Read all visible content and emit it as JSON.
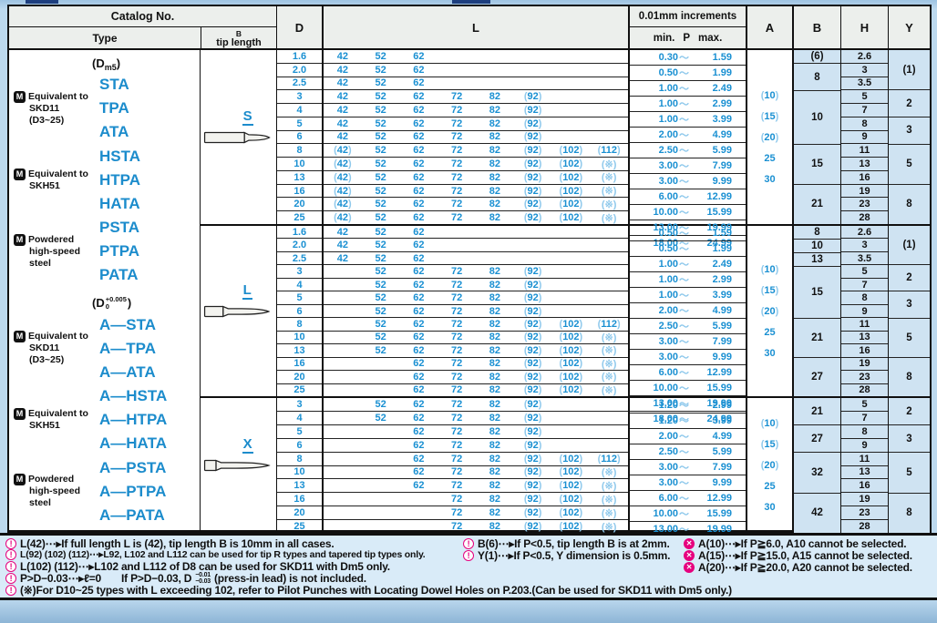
{
  "header": {
    "catalog_no": "Catalog No.",
    "type": "Type",
    "tip_b": "B",
    "tip_length": "tip length",
    "d": "D",
    "l": "L",
    "increments": "0.01mm increments",
    "p_min": "min.",
    "p_label": "P",
    "p_max": "max.",
    "a": "A",
    "b": "B",
    "h": "H",
    "y": "Y"
  },
  "type_column": {
    "sections": [
      {
        "dim_header": {
          "pre": "(D",
          "sub": "m5",
          "post": ")"
        },
        "groups": [
          {
            "label_lines": [
              "Equivalent to",
              "SKD11",
              "(D3~25)"
            ],
            "types": [
              "STA",
              "TPA",
              "ATA"
            ]
          },
          {
            "label_lines": [
              "Equivalent to",
              "SKH51"
            ],
            "types": [
              "HSTA",
              "HTPA",
              "HATA"
            ]
          },
          {
            "label_lines": [
              "Powdered",
              "high-speed",
              "steel"
            ],
            "types": [
              "PSTA",
              "PTPA",
              "PATA"
            ]
          }
        ]
      },
      {
        "dim_header": {
          "pre": "(D",
          "sup": "+0.005",
          "sub": "0",
          "post": ")"
        },
        "groups": [
          {
            "label_lines": [
              "Equivalent to",
              "SKD11",
              "(D3~25)"
            ],
            "types": [
              "A—STA",
              "A—TPA",
              "A—ATA"
            ]
          },
          {
            "label_lines": [
              "Equivalent to",
              "SKH51"
            ],
            "types": [
              "A—HSTA",
              "A—HTPA",
              "A—HATA"
            ]
          },
          {
            "label_lines": [
              "Powdered",
              "high-speed",
              "steel"
            ],
            "types": [
              "A—PSTA",
              "A—PTPA",
              "A—PATA"
            ]
          }
        ]
      }
    ]
  },
  "blocks": [
    {
      "tip_label": "S",
      "rows": [
        {
          "d": "1.6",
          "l": [
            "42",
            "52",
            "62",
            "",
            "",
            "",
            "",
            ""
          ],
          "p": "0.30～1.59"
        },
        {
          "d": "2.0",
          "l": [
            "42",
            "52",
            "62",
            "",
            "",
            "",
            "",
            ""
          ],
          "p": "0.50～1.99"
        },
        {
          "d": "2.5",
          "l": [
            "42",
            "52",
            "62",
            "",
            "",
            "",
            "",
            ""
          ],
          "p": "1.00～2.49"
        },
        {
          "d": "3",
          "l": [
            "42",
            "52",
            "62",
            "72",
            "82",
            "(92)",
            "",
            ""
          ],
          "p": "1.00～2.99"
        },
        {
          "d": "4",
          "l": [
            "42",
            "52",
            "62",
            "72",
            "82",
            "(92)",
            "",
            ""
          ],
          "p": "1.00～3.99"
        },
        {
          "d": "5",
          "l": [
            "42",
            "52",
            "62",
            "72",
            "82",
            "(92)",
            "",
            ""
          ],
          "p": "2.00～4.99"
        },
        {
          "d": "6",
          "l": [
            "42",
            "52",
            "62",
            "72",
            "82",
            "(92)",
            "",
            ""
          ],
          "p": "2.50～5.99"
        },
        {
          "d": "8",
          "l": [
            "(42)",
            "52",
            "62",
            "72",
            "82",
            "(92)",
            "(102)",
            "(112)"
          ],
          "p": "3.00～7.99"
        },
        {
          "d": "10",
          "l": [
            "(42)",
            "52",
            "62",
            "72",
            "82",
            "(92)",
            "(102)",
            "(※)"
          ],
          "p": "3.00～9.99"
        },
        {
          "d": "13",
          "l": [
            "(42)",
            "52",
            "62",
            "72",
            "82",
            "(92)",
            "(102)",
            "(※)"
          ],
          "p": "6.00～12.99"
        },
        {
          "d": "16",
          "l": [
            "(42)",
            "52",
            "62",
            "72",
            "82",
            "(92)",
            "(102)",
            "(※)"
          ],
          "p": "10.00～15.99"
        },
        {
          "d": "20",
          "l": [
            "(42)",
            "52",
            "62",
            "72",
            "82",
            "(92)",
            "(102)",
            "(※)"
          ],
          "p": "13.00～19.99"
        },
        {
          "d": "25",
          "l": [
            "(42)",
            "52",
            "62",
            "72",
            "82",
            "(92)",
            "(102)",
            "(※)"
          ],
          "p": "18.00～24.99"
        }
      ],
      "a_values": [
        "(10)",
        "(15)",
        "(20)",
        "25",
        "30"
      ],
      "b_cells": [
        {
          "span": 1,
          "v": "(6)"
        },
        {
          "span": 2,
          "v": "8"
        },
        {
          "span": 4,
          "v": "10"
        },
        {
          "span": 3,
          "v": "15"
        },
        {
          "span": 3,
          "v": "21"
        }
      ],
      "h_values": [
        "2.6",
        "3",
        "3.5",
        "5",
        "7",
        "8",
        "9",
        "11",
        "13",
        "16",
        "19",
        "23",
        "28"
      ],
      "y_cells": [
        {
          "span": 3,
          "v": "(1)"
        },
        {
          "span": 2,
          "v": "2"
        },
        {
          "span": 2,
          "v": "3"
        },
        {
          "span": 3,
          "v": "5"
        },
        {
          "span": 3,
          "v": "8"
        }
      ]
    },
    {
      "tip_label": "L",
      "rows": [
        {
          "d": "1.6",
          "l": [
            "42",
            "52",
            "62",
            "",
            "",
            "",
            "",
            ""
          ],
          "p": "0.50～1.59"
        },
        {
          "d": "2.0",
          "l": [
            "42",
            "52",
            "62",
            "",
            "",
            "",
            "",
            ""
          ],
          "p": "0.50～1.99"
        },
        {
          "d": "2.5",
          "l": [
            "42",
            "52",
            "62",
            "",
            "",
            "",
            "",
            ""
          ],
          "p": "1.00～2.49"
        },
        {
          "d": "3",
          "l": [
            "",
            "52",
            "62",
            "72",
            "82",
            "(92)",
            "",
            ""
          ],
          "p": "1.00～2.99"
        },
        {
          "d": "4",
          "l": [
            "",
            "52",
            "62",
            "72",
            "82",
            "(92)",
            "",
            ""
          ],
          "p": "1.00～3.99"
        },
        {
          "d": "5",
          "l": [
            "",
            "52",
            "62",
            "72",
            "82",
            "(92)",
            "",
            ""
          ],
          "p": "2.00～4.99"
        },
        {
          "d": "6",
          "l": [
            "",
            "52",
            "62",
            "72",
            "82",
            "(92)",
            "",
            ""
          ],
          "p": "2.50～5.99"
        },
        {
          "d": "8",
          "l": [
            "",
            "52",
            "62",
            "72",
            "82",
            "(92)",
            "(102)",
            "(112)"
          ],
          "p": "3.00～7.99"
        },
        {
          "d": "10",
          "l": [
            "",
            "52",
            "62",
            "72",
            "82",
            "(92)",
            "(102)",
            "(※)"
          ],
          "p": "3.00～9.99"
        },
        {
          "d": "13",
          "l": [
            "",
            "52",
            "62",
            "72",
            "82",
            "(92)",
            "(102)",
            "(※)"
          ],
          "p": "6.00～12.99"
        },
        {
          "d": "16",
          "l": [
            "",
            "",
            "62",
            "72",
            "82",
            "(92)",
            "(102)",
            "(※)"
          ],
          "p": "10.00～15.99"
        },
        {
          "d": "20",
          "l": [
            "",
            "",
            "62",
            "72",
            "82",
            "(92)",
            "(102)",
            "(※)"
          ],
          "p": "13.00～19.99"
        },
        {
          "d": "25",
          "l": [
            "",
            "",
            "62",
            "72",
            "82",
            "(92)",
            "(102)",
            "(※)"
          ],
          "p": "18.00～24.99"
        }
      ],
      "a_values": [
        "(10)",
        "(15)",
        "(20)",
        "25",
        "30"
      ],
      "b_cells": [
        {
          "span": 1,
          "v": "8"
        },
        {
          "span": 1,
          "v": "10"
        },
        {
          "span": 1,
          "v": "13"
        },
        {
          "span": 4,
          "v": "15"
        },
        {
          "span": 3,
          "v": "21"
        },
        {
          "span": 3,
          "v": "27"
        }
      ],
      "h_values": [
        "2.6",
        "3",
        "3.5",
        "5",
        "7",
        "8",
        "9",
        "11",
        "13",
        "16",
        "19",
        "23",
        "28"
      ],
      "y_cells": [
        {
          "span": 3,
          "v": "(1)"
        },
        {
          "span": 2,
          "v": "2"
        },
        {
          "span": 2,
          "v": "3"
        },
        {
          "span": 3,
          "v": "5"
        },
        {
          "span": 3,
          "v": "8"
        }
      ]
    },
    {
      "tip_label": "X",
      "rows": [
        {
          "d": "3",
          "l": [
            "",
            "52",
            "62",
            "72",
            "82",
            "(92)",
            "",
            ""
          ],
          "p": "1.20～2.99"
        },
        {
          "d": "4",
          "l": [
            "",
            "52",
            "62",
            "72",
            "82",
            "(92)",
            "",
            ""
          ],
          "p": "1.20～3.99"
        },
        {
          "d": "5",
          "l": [
            "",
            "",
            "62",
            "72",
            "82",
            "(92)",
            "",
            ""
          ],
          "p": "2.00～4.99"
        },
        {
          "d": "6",
          "l": [
            "",
            "",
            "62",
            "72",
            "82",
            "(92)",
            "",
            ""
          ],
          "p": "2.50～5.99"
        },
        {
          "d": "8",
          "l": [
            "",
            "",
            "62",
            "72",
            "82",
            "(92)",
            "(102)",
            "(112)"
          ],
          "p": "3.00～7.99"
        },
        {
          "d": "10",
          "l": [
            "",
            "",
            "62",
            "72",
            "82",
            "(92)",
            "(102)",
            "(※)"
          ],
          "p": "3.00～9.99"
        },
        {
          "d": "13",
          "l": [
            "",
            "",
            "62",
            "72",
            "82",
            "(92)",
            "(102)",
            "(※)"
          ],
          "p": "6.00～12.99"
        },
        {
          "d": "16",
          "l": [
            "",
            "",
            "",
            "72",
            "82",
            "(92)",
            "(102)",
            "(※)"
          ],
          "p": "10.00～15.99"
        },
        {
          "d": "20",
          "l": [
            "",
            "",
            "",
            "72",
            "82",
            "(92)",
            "(102)",
            "(※)"
          ],
          "p": "13.00～19.99"
        },
        {
          "d": "25",
          "l": [
            "",
            "",
            "",
            "72",
            "82",
            "(92)",
            "(102)",
            "(※)"
          ],
          "p": "18.00～24.99"
        }
      ],
      "a_values": [
        "(10)",
        "(15)",
        "(20)",
        "25",
        "30"
      ],
      "b_cells": [
        {
          "span": 2,
          "v": "21"
        },
        {
          "span": 2,
          "v": "27"
        },
        {
          "span": 3,
          "v": "32"
        },
        {
          "span": 3,
          "v": "42"
        }
      ],
      "h_values": [
        "5",
        "7",
        "8",
        "9",
        "11",
        "13",
        "16",
        "19",
        "23",
        "28"
      ],
      "y_cells": [
        {
          "span": 2,
          "v": "2"
        },
        {
          "span": 2,
          "v": "3"
        },
        {
          "span": 3,
          "v": "5"
        },
        {
          "span": 3,
          "v": "8"
        }
      ]
    }
  ],
  "footnotes": {
    "left": [
      "L(42)⋯▸If full length L is (42), tip length B is 10mm in all cases.",
      "L(92) (102) (112)⋯▸L92,  L102 and L112 can be used for tip R types and tapered tip types only.",
      "L(102) (112)⋯▸L102 and L112 of D8 can be used for SKD11 with Dm5 only."
    ],
    "press_in": {
      "part1": "P>D−0.03⋯▸ℓ=0",
      "part2": "If P>D−0.03, D",
      "tol_top": "−0.01",
      "tol_bottom": "−0.03",
      "part3": "(press-in lead) is not included."
    },
    "asterisk": "(※)For D10~25 types with L exceeding 102, refer to Pilot Punches with Locating Dowel Holes on P.203.(Can be used for SKD11 with Dm5 only.)",
    "mid": [
      "B(6)⋯▸If P<0.5, tip length B is at 2mm.",
      "Y(1)⋯▸If P<0.5, Y dimension is 0.5mm."
    ],
    "right": [
      "A(10)⋯▸If P≧6.0, A10 cannot be selected.",
      "A(15)⋯▸If P≧15.0, A15 cannot be selected.",
      "A(20)⋯▸If P≧20.0, A20 cannot be selected."
    ]
  },
  "colors": {
    "blue_text": "#1a90d2",
    "light_paren": "#8fc9ec",
    "cell_blue_bg": "#cfe3f2",
    "note_pink": "#e6007e"
  }
}
